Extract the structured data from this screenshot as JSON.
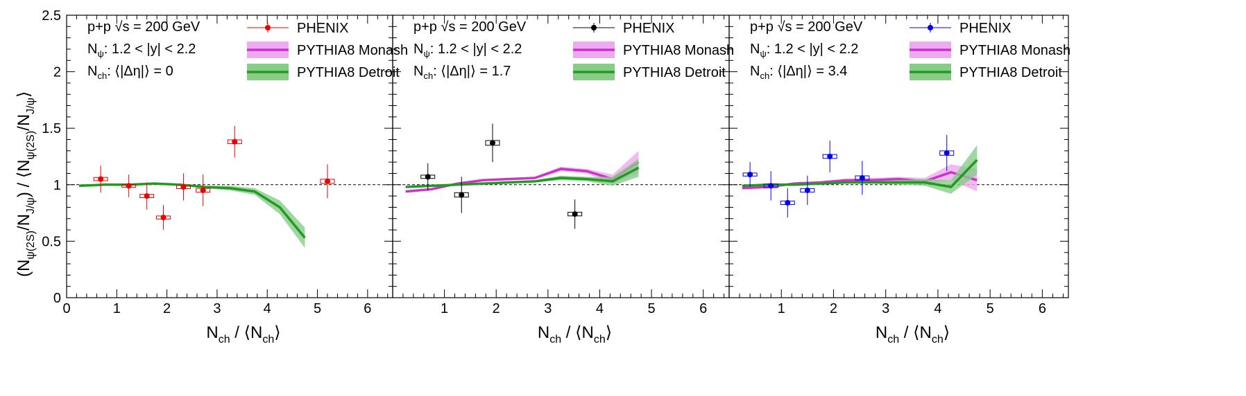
{
  "chart_data": [
    {
      "type": "scatter",
      "panel": 1,
      "texts": {
        "line1": "p+p   √s = 200 GeV",
        "line2": "N: 1.2 < |y| < 2.2",
        "line3": "N:   ⟨|Δη|⟩ = 0"
      },
      "phenix_color": "#ee0000",
      "phenix": [
        {
          "x": 0.68,
          "y": 1.05,
          "err": 0.12
        },
        {
          "x": 1.24,
          "y": 0.99,
          "err": 0.1
        },
        {
          "x": 1.6,
          "y": 0.9,
          "err": 0.12
        },
        {
          "x": 1.93,
          "y": 0.71,
          "err": 0.11
        },
        {
          "x": 2.33,
          "y": 0.98,
          "err": 0.12
        },
        {
          "x": 2.72,
          "y": 0.95,
          "err": 0.14
        },
        {
          "x": 3.35,
          "y": 1.38,
          "err": 0.14
        },
        {
          "x": 5.2,
          "y": 1.03,
          "err": 0.15
        }
      ],
      "monash": [],
      "detroit": [
        {
          "x": 0.25,
          "y": 0.99,
          "err": 0.01
        },
        {
          "x": 0.75,
          "y": 1.0,
          "err": 0.01
        },
        {
          "x": 1.25,
          "y": 1.0,
          "err": 0.01
        },
        {
          "x": 1.75,
          "y": 1.01,
          "err": 0.01
        },
        {
          "x": 2.25,
          "y": 1.0,
          "err": 0.01
        },
        {
          "x": 2.75,
          "y": 0.98,
          "err": 0.01
        },
        {
          "x": 3.25,
          "y": 0.97,
          "err": 0.02
        },
        {
          "x": 3.75,
          "y": 0.94,
          "err": 0.03
        },
        {
          "x": 4.25,
          "y": 0.8,
          "err": 0.06
        },
        {
          "x": 4.75,
          "y": 0.53,
          "err": 0.09
        }
      ],
      "xlim": [
        0,
        6.5
      ],
      "ylim": [
        0,
        2.5
      ]
    },
    {
      "type": "scatter",
      "panel": 2,
      "texts": {
        "line1": "p+p   √s = 200 GeV",
        "line2": "N: 1.2 < |y| < 2.2",
        "line3": "N:   ⟨|Δη|⟩ = 1.7"
      },
      "phenix_color": "#000000",
      "phenix": [
        {
          "x": 0.68,
          "y": 1.07,
          "err": 0.12
        },
        {
          "x": 1.33,
          "y": 0.91,
          "err": 0.16
        },
        {
          "x": 1.93,
          "y": 1.37,
          "err": 0.17
        },
        {
          "x": 3.52,
          "y": 0.74,
          "err": 0.13
        }
      ],
      "monash": [
        {
          "x": 0.25,
          "y": 0.94,
          "err": 0.01
        },
        {
          "x": 0.75,
          "y": 0.96,
          "err": 0.01
        },
        {
          "x": 1.25,
          "y": 1.01,
          "err": 0.01
        },
        {
          "x": 1.75,
          "y": 1.04,
          "err": 0.01
        },
        {
          "x": 2.25,
          "y": 1.05,
          "err": 0.01
        },
        {
          "x": 2.75,
          "y": 1.06,
          "err": 0.01
        },
        {
          "x": 3.25,
          "y": 1.14,
          "err": 0.02
        },
        {
          "x": 3.75,
          "y": 1.12,
          "err": 0.02
        },
        {
          "x": 4.25,
          "y": 1.05,
          "err": 0.04
        },
        {
          "x": 4.75,
          "y": 1.2,
          "err": 0.1
        }
      ],
      "detroit": [
        {
          "x": 0.25,
          "y": 0.98,
          "err": 0.01
        },
        {
          "x": 0.75,
          "y": 0.99,
          "err": 0.01
        },
        {
          "x": 1.25,
          "y": 1.0,
          "err": 0.01
        },
        {
          "x": 1.75,
          "y": 1.01,
          "err": 0.01
        },
        {
          "x": 2.25,
          "y": 1.02,
          "err": 0.01
        },
        {
          "x": 2.75,
          "y": 1.03,
          "err": 0.01
        },
        {
          "x": 3.25,
          "y": 1.06,
          "err": 0.02
        },
        {
          "x": 3.75,
          "y": 1.05,
          "err": 0.02
        },
        {
          "x": 4.25,
          "y": 1.03,
          "err": 0.04
        },
        {
          "x": 4.75,
          "y": 1.15,
          "err": 0.08
        }
      ],
      "xlim": [
        0,
        6.5
      ],
      "ylim": [
        0,
        2.5
      ]
    },
    {
      "type": "scatter",
      "panel": 3,
      "texts": {
        "line1": "p+p   √s = 200 GeV",
        "line2": "N: 1.2 < |y| < 2.2",
        "line3": "N:   ⟨|Δη|⟩ = 3.4"
      },
      "phenix_color": "#0000ee",
      "phenix": [
        {
          "x": 0.4,
          "y": 1.09,
          "err": 0.11
        },
        {
          "x": 0.8,
          "y": 0.99,
          "err": 0.13
        },
        {
          "x": 1.12,
          "y": 0.84,
          "err": 0.13
        },
        {
          "x": 1.5,
          "y": 0.95,
          "err": 0.13
        },
        {
          "x": 1.93,
          "y": 1.25,
          "err": 0.14
        },
        {
          "x": 2.55,
          "y": 1.06,
          "err": 0.15
        },
        {
          "x": 4.17,
          "y": 1.28,
          "err": 0.16
        }
      ],
      "monash": [
        {
          "x": 0.25,
          "y": 0.97,
          "err": 0.01
        },
        {
          "x": 0.75,
          "y": 0.98,
          "err": 0.01
        },
        {
          "x": 1.25,
          "y": 1.01,
          "err": 0.01
        },
        {
          "x": 1.75,
          "y": 1.02,
          "err": 0.01
        },
        {
          "x": 2.25,
          "y": 1.04,
          "err": 0.01
        },
        {
          "x": 2.75,
          "y": 1.04,
          "err": 0.02
        },
        {
          "x": 3.25,
          "y": 1.05,
          "err": 0.02
        },
        {
          "x": 3.75,
          "y": 1.03,
          "err": 0.03
        },
        {
          "x": 4.25,
          "y": 1.11,
          "err": 0.07
        },
        {
          "x": 4.75,
          "y": 1.04,
          "err": 0.1
        }
      ],
      "detroit": [
        {
          "x": 0.25,
          "y": 0.99,
          "err": 0.01
        },
        {
          "x": 0.75,
          "y": 1.0,
          "err": 0.01
        },
        {
          "x": 1.25,
          "y": 1.0,
          "err": 0.01
        },
        {
          "x": 1.75,
          "y": 1.01,
          "err": 0.01
        },
        {
          "x": 2.25,
          "y": 1.02,
          "err": 0.01
        },
        {
          "x": 2.75,
          "y": 1.02,
          "err": 0.01
        },
        {
          "x": 3.25,
          "y": 1.02,
          "err": 0.02
        },
        {
          "x": 3.75,
          "y": 1.02,
          "err": 0.03
        },
        {
          "x": 4.25,
          "y": 0.98,
          "err": 0.06
        },
        {
          "x": 4.75,
          "y": 1.22,
          "err": 0.13
        }
      ],
      "xlim": [
        0,
        6.5
      ],
      "ylim": [
        0,
        2.5
      ]
    }
  ],
  "legend": {
    "phenix": "PHENIX",
    "monash": "PYTHIA8 Monash",
    "detroit": "PYTHIA8 Detroit"
  },
  "colors": {
    "monash_line": "#cc33cc",
    "monash_band": "#eeaaee",
    "detroit_line": "#229922",
    "detroit_band": "#88cc88",
    "ref_line": "#000000"
  },
  "axes": {
    "xticks": [
      0,
      1,
      2,
      3,
      4,
      5,
      6
    ],
    "yticks": [
      0,
      0.5,
      1,
      1.5,
      2,
      2.5
    ],
    "ytick_labels": [
      "0",
      "0.5",
      "1",
      "1.5",
      "2",
      "2.5"
    ],
    "xlabel_main": "N",
    "xlabel_sub": "ch",
    "xlabel_div": "/   ⟨N",
    "xlabel_close": "⟩",
    "ylabel": "(N_ψ(2S)/N_J/ψ)  /  ⟨N_ψ(2S)/N_J/ψ⟩",
    "ref_y": 1
  }
}
